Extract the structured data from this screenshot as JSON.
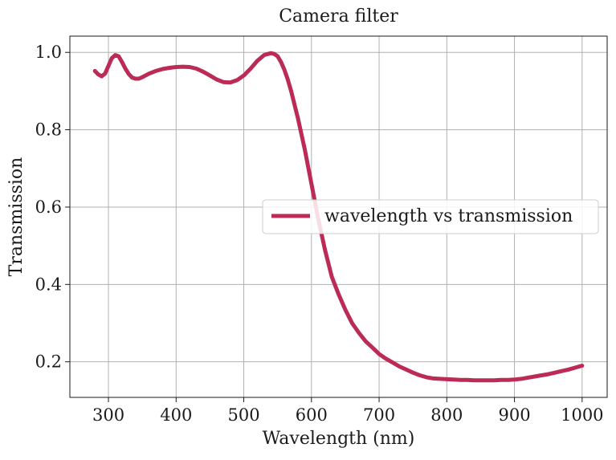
{
  "chart_data": {
    "type": "line",
    "title": "Camera filter",
    "xlabel": "Wavelength (nm)",
    "ylabel": "Transmission",
    "xlim": [
      243,
      1037
    ],
    "ylim": [
      0.108,
      1.042
    ],
    "xticks": [
      300,
      400,
      500,
      600,
      700,
      800,
      900,
      1000
    ],
    "xtick_labels": [
      "300",
      "400",
      "500",
      "600",
      "700",
      "800",
      "900",
      "1000"
    ],
    "yticks": [
      0.2,
      0.4,
      0.6,
      0.8,
      1.0
    ],
    "ytick_labels": [
      "0.2",
      "0.4",
      "0.6",
      "0.8",
      "1.0"
    ],
    "grid": true,
    "legend_position": "center-right",
    "series": [
      {
        "name": "wavelength vs transmission",
        "color": "#bc2b55",
        "x": [
          280,
          285,
          290,
          295,
          300,
          305,
          310,
          315,
          320,
          325,
          330,
          335,
          340,
          345,
          350,
          360,
          370,
          380,
          390,
          400,
          410,
          420,
          430,
          440,
          450,
          460,
          470,
          480,
          490,
          500,
          510,
          520,
          530,
          540,
          545,
          550,
          555,
          560,
          565,
          570,
          575,
          580,
          590,
          600,
          610,
          620,
          630,
          640,
          650,
          660,
          670,
          680,
          690,
          700,
          710,
          720,
          730,
          740,
          750,
          760,
          770,
          780,
          790,
          800,
          810,
          820,
          830,
          840,
          850,
          860,
          870,
          880,
          890,
          900,
          910,
          920,
          930,
          940,
          950,
          960,
          970,
          980,
          990,
          1000
        ],
        "values": [
          0.952,
          0.943,
          0.938,
          0.945,
          0.965,
          0.985,
          0.993,
          0.99,
          0.975,
          0.958,
          0.944,
          0.935,
          0.932,
          0.932,
          0.936,
          0.945,
          0.952,
          0.957,
          0.96,
          0.962,
          0.963,
          0.962,
          0.958,
          0.95,
          0.94,
          0.93,
          0.923,
          0.922,
          0.928,
          0.94,
          0.958,
          0.978,
          0.993,
          0.998,
          0.996,
          0.99,
          0.975,
          0.955,
          0.93,
          0.9,
          0.865,
          0.83,
          0.75,
          0.66,
          0.57,
          0.49,
          0.42,
          0.375,
          0.335,
          0.3,
          0.275,
          0.253,
          0.237,
          0.22,
          0.208,
          0.198,
          0.188,
          0.18,
          0.172,
          0.165,
          0.16,
          0.157,
          0.156,
          0.155,
          0.154,
          0.153,
          0.153,
          0.152,
          0.152,
          0.152,
          0.152,
          0.153,
          0.153,
          0.154,
          0.156,
          0.159,
          0.162,
          0.165,
          0.168,
          0.172,
          0.176,
          0.18,
          0.185,
          0.19
        ]
      }
    ]
  }
}
